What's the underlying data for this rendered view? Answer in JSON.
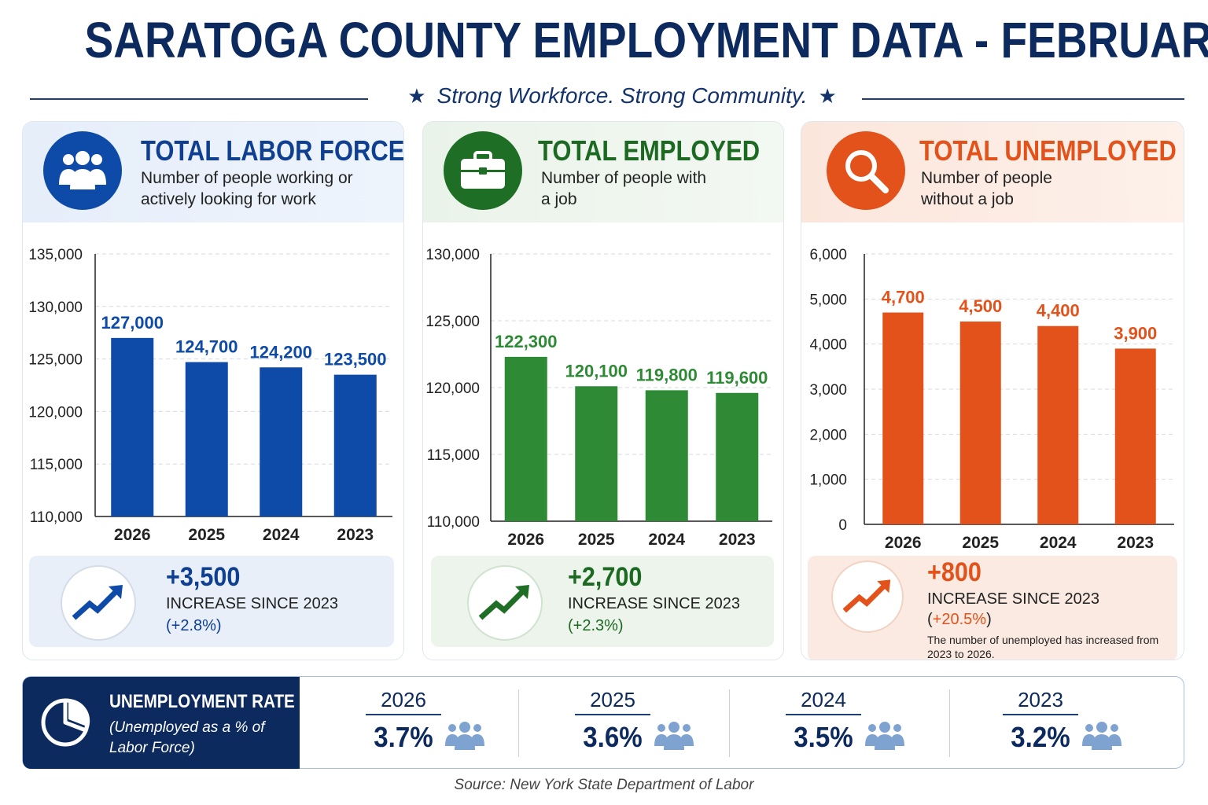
{
  "title": "SARATOGA COUNTY EMPLOYMENT DATA - FEBRUARY",
  "tagline": "Strong Workforce. Strong Community.",
  "colors": {
    "blue": "#0e4aa8",
    "green": "#2e8a34",
    "orange": "#e2521a",
    "navy": "#0c2a5e"
  },
  "cards": [
    {
      "key": "labor",
      "title": "TOTAL LABOR FORCE",
      "description": "Number of people working or actively looking for work",
      "icon": "people-icon",
      "change": "+3,500",
      "change_label": "INCREASE SINCE 2023",
      "change_pct": "(+2.8%)"
    },
    {
      "key": "employed",
      "title": "TOTAL EMPLOYED",
      "description": "Number of people with a job",
      "icon": "briefcase-icon",
      "change": "+2,700",
      "change_label": "INCREASE SINCE 2023",
      "change_pct": "(+2.3%)"
    },
    {
      "key": "unemployed",
      "title": "TOTAL UNEMPLOYED",
      "description": "Number of people without a job",
      "icon": "magnifier-icon",
      "change": "+800",
      "change_label": "INCREASE SINCE 2023",
      "change_pct_open": "(",
      "change_pct_value": "+20.5%",
      "change_pct_close": ")",
      "note": "The number of unemployed has increased from 2023 to 2026."
    }
  ],
  "chart_data": [
    {
      "type": "bar",
      "title": "TOTAL LABOR FORCE",
      "categories": [
        "2026",
        "2025",
        "2024",
        "2023"
      ],
      "values": [
        127000,
        124700,
        124200,
        123500
      ],
      "data_labels": [
        "127,000",
        "124,700",
        "124,200",
        "123,500"
      ],
      "yticks": [
        "135,000",
        "130,000",
        "125,000",
        "120,000",
        "115,000",
        "110,000"
      ],
      "ytick_values": [
        135000,
        130000,
        125000,
        120000,
        115000,
        110000
      ],
      "ylim": [
        110000,
        135000
      ],
      "grid": true,
      "color": "#0e4aa8"
    },
    {
      "type": "bar",
      "title": "TOTAL EMPLOYED",
      "categories": [
        "2026",
        "2025",
        "2024",
        "2023"
      ],
      "values": [
        122300,
        120100,
        119800,
        119600
      ],
      "data_labels": [
        "122,300",
        "120,100",
        "119,800",
        "119,600"
      ],
      "yticks": [
        "130,000",
        "125,000",
        "120,000",
        "115,000",
        "110,000"
      ],
      "ytick_values": [
        130000,
        125000,
        120000,
        115000,
        110000
      ],
      "ylim": [
        110000,
        130000
      ],
      "grid": true,
      "color": "#2e8a34"
    },
    {
      "type": "bar",
      "title": "TOTAL UNEMPLOYED",
      "categories": [
        "2026",
        "2025",
        "2024",
        "2023"
      ],
      "values": [
        4700,
        4500,
        4400,
        3900
      ],
      "data_labels": [
        "4,700",
        "4,500",
        "4,400",
        "3,900"
      ],
      "yticks": [
        "6,000",
        "5,000",
        "4,000",
        "3,000",
        "2,000",
        "1,000",
        "0"
      ],
      "ytick_values": [
        6000,
        5000,
        4000,
        3000,
        2000,
        1000,
        0
      ],
      "ylim": [
        0,
        6000
      ],
      "grid": true,
      "color": "#e2521a"
    }
  ],
  "rate": {
    "title": "UNEMPLOYMENT RATE",
    "subtitle": "(Unemployed as a % of Labor Force)",
    "items": [
      {
        "year": "2026",
        "value": "3.7%"
      },
      {
        "year": "2025",
        "value": "3.6%"
      },
      {
        "year": "2024",
        "value": "3.5%"
      },
      {
        "year": "2023",
        "value": "3.2%"
      }
    ]
  },
  "source": "Source: New York State Department of Labor"
}
